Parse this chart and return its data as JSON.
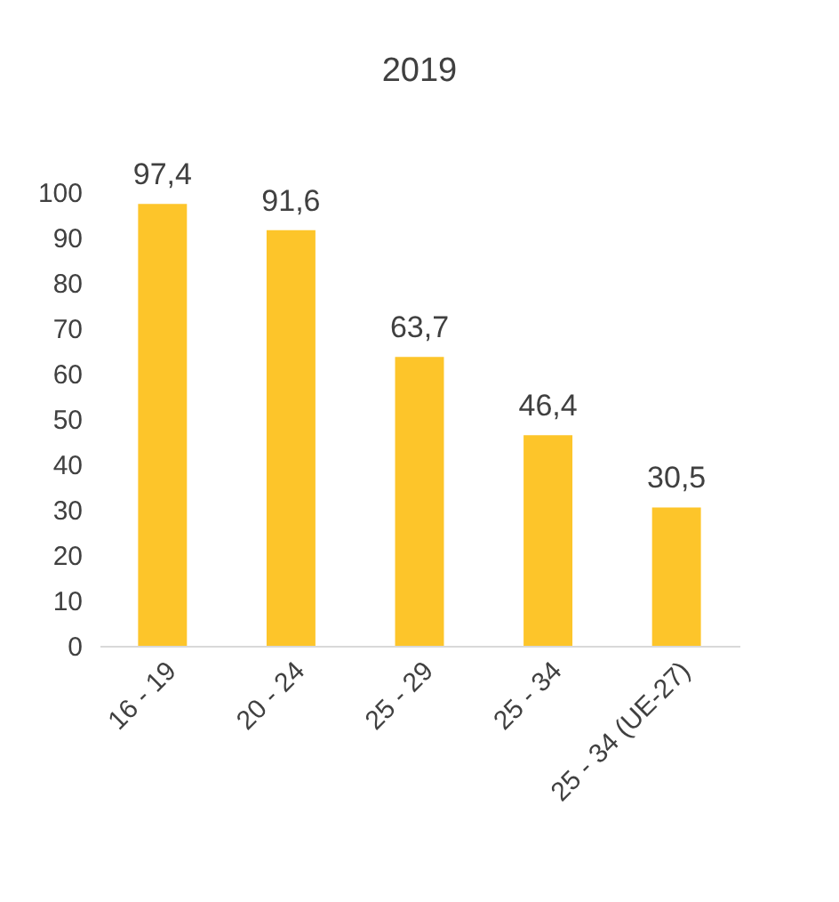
{
  "chart_data": {
    "type": "bar",
    "title": "2019",
    "categories": [
      "16 - 19",
      "20 - 24",
      "25 - 29",
      "25 - 34",
      "25 - 34 (UE-27)"
    ],
    "values": [
      97.4,
      91.6,
      63.7,
      46.4,
      30.5
    ],
    "value_labels": [
      "97,4",
      "91,6",
      "63,7",
      "46,4",
      "30,5"
    ],
    "color": "#fdc52a",
    "ylim": [
      0,
      100
    ],
    "yticks": [
      0,
      10,
      20,
      30,
      40,
      50,
      60,
      70,
      80,
      90,
      100
    ],
    "grid": false
  }
}
